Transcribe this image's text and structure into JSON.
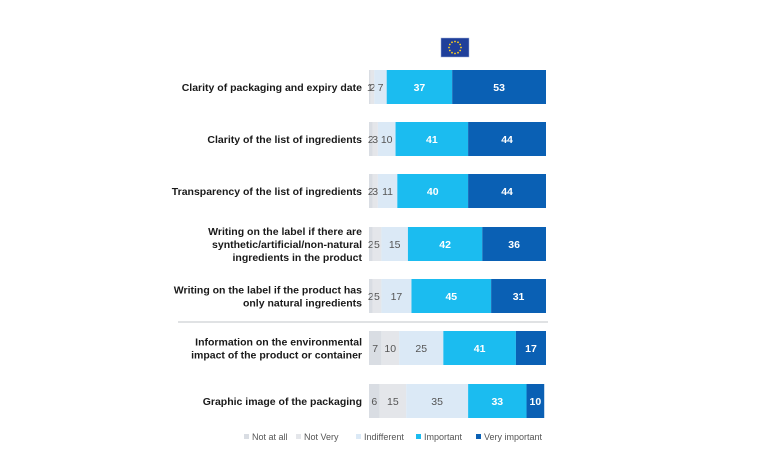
{
  "chart_data": {
    "type": "bar",
    "orientation": "horizontal",
    "stacked": true,
    "categories": [
      [
        "Clarity of packaging and expiry date"
      ],
      [
        "Clarity of the list of ingredients"
      ],
      [
        "Transparency of the list of ingredients"
      ],
      [
        "Writing on the label if there are",
        "synthetic/artificial/non-natural",
        "ingredients in the product"
      ],
      [
        "Writing on the label if the product has",
        "only natural ingredients"
      ],
      [
        "Information on the environmental",
        "impact of the product or container"
      ],
      [
        "Graphic image of the packaging"
      ]
    ],
    "series": [
      {
        "name": "Not at all",
        "color": "#d9dde3",
        "values": [
          1,
          2,
          2,
          2,
          2,
          7,
          6
        ]
      },
      {
        "name": "Not Very",
        "color": "#e4e6ea",
        "values": [
          2,
          3,
          3,
          5,
          5,
          10,
          15
        ]
      },
      {
        "name": "Indifferent",
        "color": "#dbe9f6",
        "values": [
          7,
          10,
          11,
          15,
          17,
          25,
          35
        ]
      },
      {
        "name": "Important",
        "color": "#1bbcf0",
        "values": [
          37,
          41,
          40,
          42,
          45,
          41,
          33
        ]
      },
      {
        "name": "Very important",
        "color": "#0a60b4",
        "values": [
          53,
          44,
          44,
          36,
          31,
          17,
          10
        ]
      }
    ],
    "xlim": [
      0,
      100
    ],
    "legend": "bottom",
    "grid": false,
    "emblem": "eu-flag-icon",
    "group_divider_after_category": 4
  }
}
